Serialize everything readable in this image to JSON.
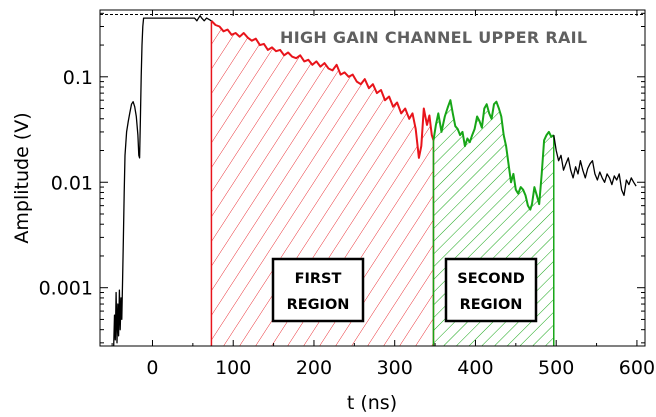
{
  "chart_data": {
    "type": "line",
    "title": "",
    "xlabel": "t (ns)",
    "ylabel": "Amplitude (V)",
    "xlim": [
      -65,
      610
    ],
    "ylim": [
      0.00028,
      0.43
    ],
    "yscale": "log",
    "grid": false,
    "x_ticks": [
      0,
      100,
      200,
      300,
      400,
      500,
      600
    ],
    "x_tick_labels": [
      "0",
      "100",
      "200",
      "300",
      "400",
      "500",
      "600"
    ],
    "y_ticks": [
      0.001,
      0.01,
      0.1
    ],
    "y_tick_labels": [
      "0.001",
      "0.01",
      "0.1"
    ],
    "rail": {
      "value": 0.39,
      "label": "HIGH GAIN CHANNEL UPPER RAIL",
      "style": "dashed"
    },
    "regions": [
      {
        "label_line1": "FIRST",
        "label_line2": "REGION",
        "x_start": 73,
        "x_end": 348,
        "color": "#e8141b",
        "hatch": "forward"
      },
      {
        "label_line1": "SECOND",
        "label_line2": "REGION",
        "x_start": 348,
        "x_end": 497,
        "color": "#17a617",
        "hatch": "backward"
      }
    ],
    "series": [
      {
        "color": "#000000",
        "points": [
          [
            -48,
            0.00028
          ],
          [
            -47,
            0.00055
          ],
          [
            -46,
            0.00032
          ],
          [
            -45,
            0.0009
          ],
          [
            -44,
            0.0003
          ],
          [
            -43,
            0.0007
          ],
          [
            -42,
            0.00035
          ],
          [
            -41,
            0.00095
          ],
          [
            -40,
            0.0004
          ],
          [
            -39,
            0.0008
          ],
          [
            -38,
            0.0005
          ],
          [
            -37,
            0.0012
          ],
          [
            -36,
            0.003
          ],
          [
            -35,
            0.008
          ],
          [
            -34,
            0.018
          ],
          [
            -32,
            0.03
          ],
          [
            -30,
            0.038
          ],
          [
            -28,
            0.046
          ],
          [
            -26,
            0.055
          ],
          [
            -24,
            0.058
          ],
          [
            -22,
            0.052
          ],
          [
            -20,
            0.042
          ],
          [
            -18,
            0.028
          ],
          [
            -17,
            0.018
          ],
          [
            -16,
            0.017
          ],
          [
            -15,
            0.04
          ],
          [
            -14,
            0.1
          ],
          [
            -13,
            0.2
          ],
          [
            -12,
            0.3
          ],
          [
            -11,
            0.36
          ],
          [
            -10,
            0.36
          ],
          [
            0,
            0.36
          ],
          [
            20,
            0.36
          ],
          [
            40,
            0.36
          ],
          [
            52,
            0.36
          ],
          [
            55,
            0.34
          ],
          [
            57,
            0.36
          ],
          [
            59,
            0.38
          ],
          [
            61,
            0.36
          ],
          [
            64,
            0.34
          ],
          [
            67,
            0.36
          ],
          [
            70,
            0.35
          ],
          [
            73,
            0.34
          ]
        ]
      },
      {
        "color": "#e8141b",
        "points": [
          [
            73,
            0.34
          ],
          [
            78,
            0.31
          ],
          [
            83,
            0.3
          ],
          [
            88,
            0.27
          ],
          [
            93,
            0.28
          ],
          [
            98,
            0.25
          ],
          [
            103,
            0.26
          ],
          [
            108,
            0.24
          ],
          [
            113,
            0.26
          ],
          [
            118,
            0.235
          ],
          [
            123,
            0.22
          ],
          [
            128,
            0.23
          ],
          [
            133,
            0.2
          ],
          [
            138,
            0.205
          ],
          [
            143,
            0.18
          ],
          [
            148,
            0.19
          ],
          [
            153,
            0.175
          ],
          [
            158,
            0.18
          ],
          [
            163,
            0.16
          ],
          [
            168,
            0.17
          ],
          [
            173,
            0.155
          ],
          [
            178,
            0.15
          ],
          [
            183,
            0.16
          ],
          [
            188,
            0.14
          ],
          [
            193,
            0.145
          ],
          [
            198,
            0.13
          ],
          [
            203,
            0.14
          ],
          [
            208,
            0.125
          ],
          [
            213,
            0.135
          ],
          [
            218,
            0.12
          ],
          [
            223,
            0.115
          ],
          [
            228,
            0.13
          ],
          [
            233,
            0.105
          ],
          [
            238,
            0.11
          ],
          [
            243,
            0.1
          ],
          [
            248,
            0.105
          ],
          [
            253,
            0.09
          ],
          [
            258,
            0.085
          ],
          [
            263,
            0.095
          ],
          [
            268,
            0.078
          ],
          [
            273,
            0.085
          ],
          [
            278,
            0.07
          ],
          [
            283,
            0.075
          ],
          [
            288,
            0.06
          ],
          [
            293,
            0.065
          ],
          [
            298,
            0.052
          ],
          [
            303,
            0.057
          ],
          [
            308,
            0.045
          ],
          [
            313,
            0.05
          ],
          [
            318,
            0.04
          ],
          [
            322,
            0.045
          ],
          [
            326,
            0.032
          ],
          [
            330,
            0.017
          ],
          [
            333,
            0.022
          ],
          [
            336,
            0.05
          ],
          [
            340,
            0.035
          ],
          [
            343,
            0.043
          ],
          [
            346,
            0.028
          ],
          [
            348,
            0.025
          ]
        ]
      },
      {
        "color": "#17a617",
        "points": [
          [
            348,
            0.025
          ],
          [
            351,
            0.035
          ],
          [
            354,
            0.045
          ],
          [
            358,
            0.03
          ],
          [
            362,
            0.042
          ],
          [
            366,
            0.052
          ],
          [
            369,
            0.06
          ],
          [
            372,
            0.045
          ],
          [
            375,
            0.034
          ],
          [
            378,
            0.032
          ],
          [
            381,
            0.028
          ],
          [
            384,
            0.03
          ],
          [
            387,
            0.022
          ],
          [
            390,
            0.026
          ],
          [
            393,
            0.024
          ],
          [
            396,
            0.028
          ],
          [
            399,
            0.032
          ],
          [
            402,
            0.042
          ],
          [
            405,
            0.038
          ],
          [
            408,
            0.033
          ],
          [
            411,
            0.05
          ],
          [
            414,
            0.055
          ],
          [
            417,
            0.045
          ],
          [
            420,
            0.04
          ],
          [
            423,
            0.055
          ],
          [
            426,
            0.058
          ],
          [
            429,
            0.05
          ],
          [
            432,
            0.042
          ],
          [
            435,
            0.028
          ],
          [
            438,
            0.022
          ],
          [
            441,
            0.015
          ],
          [
            444,
            0.01
          ],
          [
            447,
            0.012
          ],
          [
            450,
            0.0085
          ],
          [
            453,
            0.0078
          ],
          [
            456,
            0.009
          ],
          [
            459,
            0.0085
          ],
          [
            462,
            0.0075
          ],
          [
            465,
            0.006
          ],
          [
            468,
            0.0055
          ],
          [
            470,
            0.0062
          ],
          [
            473,
            0.009
          ],
          [
            476,
            0.0075
          ],
          [
            479,
            0.0062
          ],
          [
            482,
            0.012
          ],
          [
            485,
            0.025
          ],
          [
            488,
            0.028
          ],
          [
            491,
            0.03
          ],
          [
            494,
            0.027
          ],
          [
            497,
            0.028
          ]
        ]
      },
      {
        "color": "#000000",
        "points": [
          [
            497,
            0.028
          ],
          [
            500,
            0.02
          ],
          [
            503,
            0.016
          ],
          [
            506,
            0.018
          ],
          [
            509,
            0.013
          ],
          [
            512,
            0.015
          ],
          [
            515,
            0.017
          ],
          [
            518,
            0.013
          ],
          [
            521,
            0.011
          ],
          [
            524,
            0.014
          ],
          [
            527,
            0.012
          ],
          [
            530,
            0.016
          ],
          [
            533,
            0.013
          ],
          [
            536,
            0.011
          ],
          [
            539,
            0.0135
          ],
          [
            542,
            0.015
          ],
          [
            545,
            0.016
          ],
          [
            548,
            0.012
          ],
          [
            551,
            0.0105
          ],
          [
            554,
            0.0125
          ],
          [
            557,
            0.011
          ],
          [
            560,
            0.01
          ],
          [
            563,
            0.012
          ],
          [
            566,
            0.011
          ],
          [
            569,
            0.0095
          ],
          [
            572,
            0.0115
          ],
          [
            575,
            0.0105
          ],
          [
            578,
            0.012
          ],
          [
            581,
            0.0085
          ],
          [
            584,
            0.0075
          ],
          [
            587,
            0.0105
          ],
          [
            590,
            0.0095
          ],
          [
            593,
            0.011
          ],
          [
            596,
            0.01
          ],
          [
            599,
            0.0092
          ]
        ]
      }
    ]
  }
}
